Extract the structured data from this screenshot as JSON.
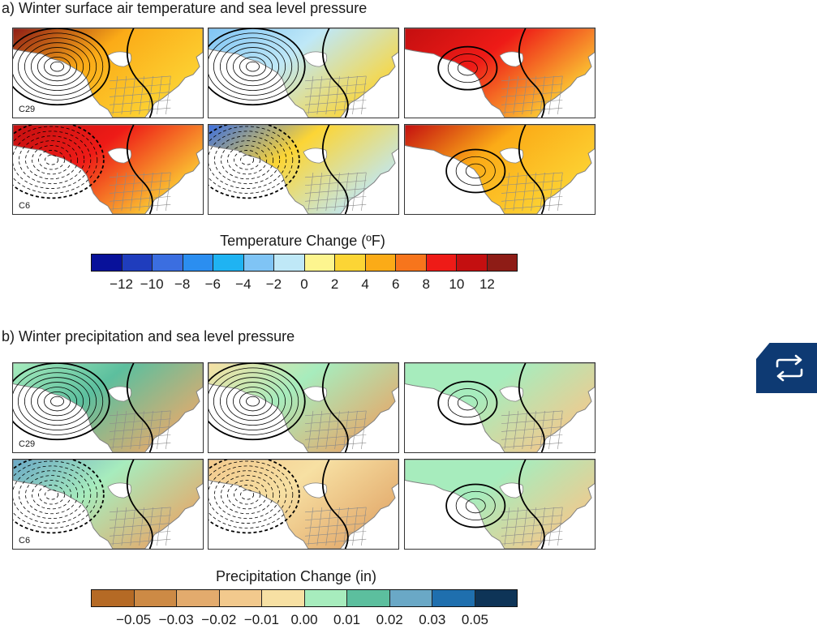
{
  "section_a": {
    "title": "a) Winter surface air temperature and sea level pressure",
    "row_labels": [
      "C29",
      "C6"
    ],
    "colorbar": {
      "title": "Temperature Change (ºF)",
      "colors": [
        "#08119a",
        "#1f3dbd",
        "#3b6ee0",
        "#2b8ef0",
        "#1fb3f2",
        "#7fc4f5",
        "#bfe8f7",
        "#fdf58f",
        "#fcd535",
        "#fbab17",
        "#f7751c",
        "#ee1b17",
        "#c40f10",
        "#8e1c16"
      ],
      "ticks": [
        "−12",
        "−10",
        "−8",
        "−6",
        "−4",
        "−2",
        "0",
        "2",
        "4",
        "6",
        "8",
        "10",
        "12"
      ]
    }
  },
  "section_b": {
    "title": "b) Winter precipitation and sea level pressure",
    "row_labels": [
      "C29",
      "C6"
    ],
    "colorbar": {
      "title": "Precipitation Change (in)",
      "colors": [
        "#b56a25",
        "#cd8a45",
        "#e3ab6d",
        "#f2c98d",
        "#f7e0a3",
        "#a7ecbd",
        "#5cbf9e",
        "#6aa8c6",
        "#1f6fae",
        "#0e3457"
      ],
      "ticks": [
        "−0.05",
        "−0.03",
        "−0.02",
        "−0.01",
        "0.00",
        "0.01",
        "0.02",
        "0.03",
        "0.05"
      ]
    }
  },
  "colors": {
    "land_outline": "#808080",
    "contour": "#000000",
    "toggle_bg": "#0e3a73"
  },
  "icons": {
    "toggle": "repeat-arrows-icon"
  }
}
